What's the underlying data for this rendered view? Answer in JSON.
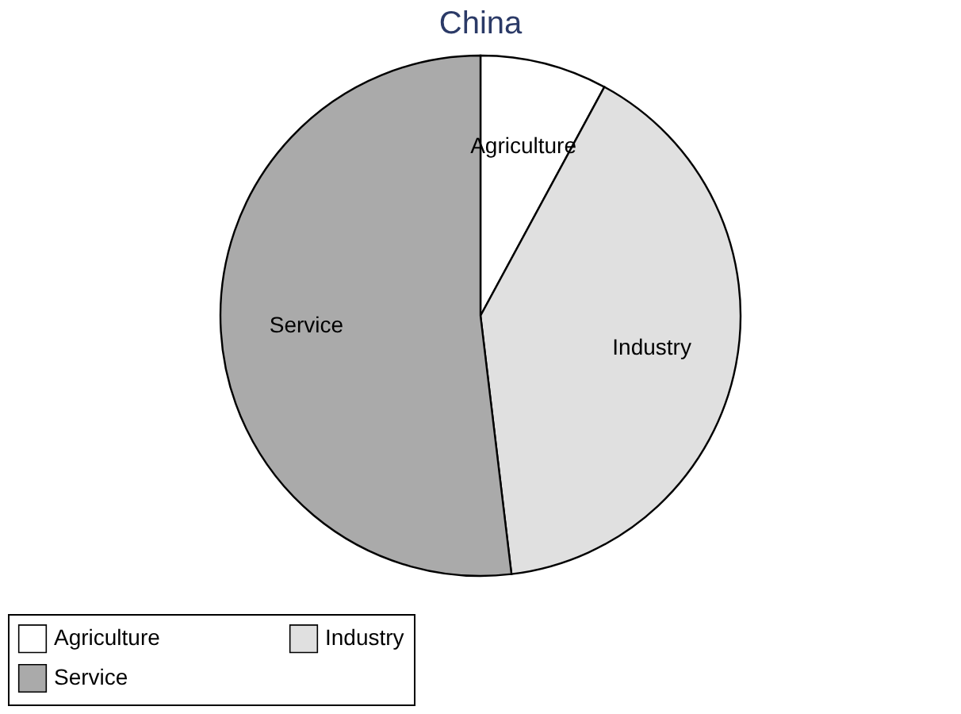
{
  "chart_data": {
    "type": "pie",
    "title": "China",
    "categories": [
      "Agriculture",
      "Industry",
      "Service"
    ],
    "values": [
      7.9,
      40.2,
      51.9
    ],
    "colors": [
      "#ffffff",
      "#e0e0e0",
      "#aaaaaa"
    ],
    "legend": "bottom"
  }
}
